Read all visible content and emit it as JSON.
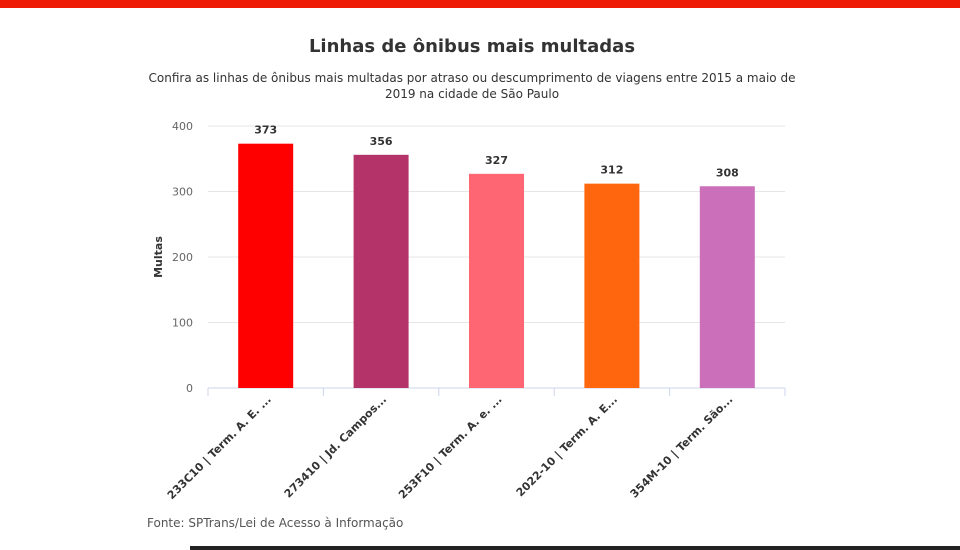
{
  "header": {
    "accent_color": "#ee1c06",
    "title": "Linhas de ônibus mais multadas",
    "subtitle": "Confira as linhas de ônibus mais multadas por atraso ou descumprimento de viagens entre 2015 a maio de 2019 na cidade de São Paulo"
  },
  "chart_data": {
    "type": "bar",
    "title": "Linhas de ônibus mais multadas",
    "xlabel": "",
    "ylabel": "Multas",
    "ylim": [
      0,
      400
    ],
    "yticks": [
      0,
      100,
      200,
      300,
      400
    ],
    "grid": true,
    "categories": [
      "233C10 | Term. A. E. ...",
      "273410 | Jd. Campos...",
      "253F10 | Term. A. e. ...",
      "2022-10 | Term. A. E...",
      "354M-10 | Term. São..."
    ],
    "values": [
      373,
      356,
      327,
      312,
      308
    ],
    "colors": [
      "#ff0000",
      "#b4346a",
      "#ff6673",
      "#ff660d",
      "#cc6fba"
    ]
  },
  "footer": {
    "source": "Fonte: SPTrans/Lei de Acesso à Informação"
  }
}
